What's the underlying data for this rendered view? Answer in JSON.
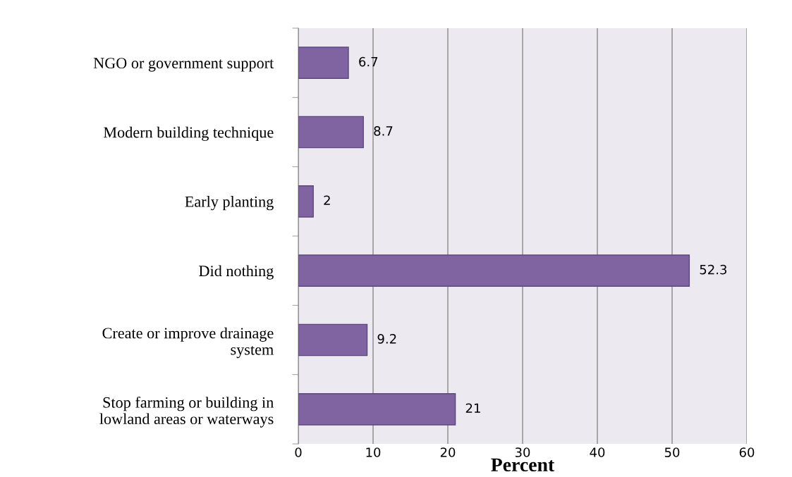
{
  "chart_data": {
    "type": "bar",
    "orientation": "horizontal",
    "xlabel": "Percent",
    "categories": [
      "NGO or government support",
      "Modern building technique",
      "Early planting",
      "Did nothing",
      "Create or improve drainage\nsystem",
      "Stop farming or building in\nlowland areas or waterways"
    ],
    "values": [
      6.7,
      8.7,
      2,
      52.3,
      9.2,
      21
    ],
    "color": "#8064a2",
    "data_labels": true,
    "xlim": [
      0,
      60
    ],
    "xticks": [
      0,
      10,
      20,
      30,
      40,
      50,
      60
    ],
    "grid": "x"
  }
}
